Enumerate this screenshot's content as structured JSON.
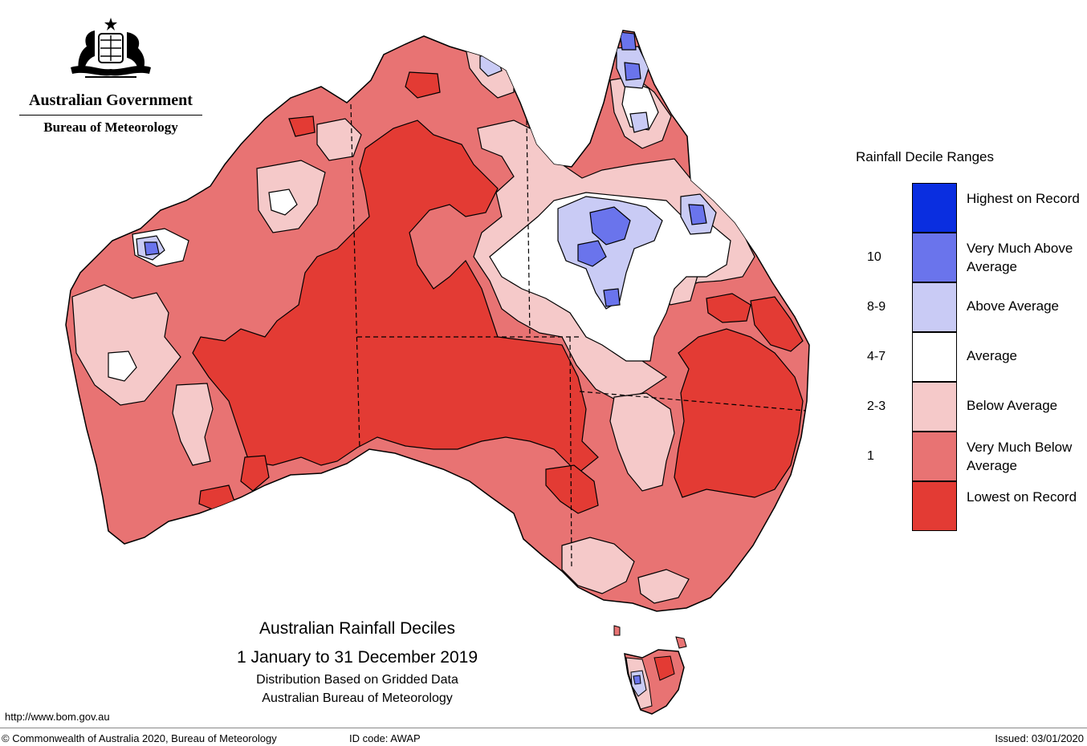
{
  "header": {
    "government": "Australian Government",
    "bureau": "Bureau of Meteorology"
  },
  "map": {
    "region": "Australia",
    "colors": {
      "highest": "#0a2ee0",
      "very_much_above": "#6a74ec",
      "above": "#c9cbf5",
      "average": "#ffffff",
      "below": "#f5c9c9",
      "very_much_below": "#e87373",
      "lowest": "#e33b34"
    }
  },
  "title": {
    "line1": "Australian Rainfall Deciles",
    "line2": "1 January to 31 December 2019",
    "line3": "Distribution Based on Gridded Data",
    "line4": "Australian Bureau of Meteorology"
  },
  "legend": {
    "title": "Rainfall Decile Ranges",
    "items": [
      {
        "range": "",
        "label": "Highest on Record",
        "color": "#0a2ee0"
      },
      {
        "range": "10",
        "label": "Very Much Above Average",
        "color": "#6a74ec"
      },
      {
        "range": "8-9",
        "label": "Above Average",
        "color": "#c9cbf5"
      },
      {
        "range": "4-7",
        "label": "Average",
        "color": "#ffffff"
      },
      {
        "range": "2-3",
        "label": "Below Average",
        "color": "#f5c9c9"
      },
      {
        "range": "1",
        "label": "Very Much Below Average",
        "color": "#e87373"
      },
      {
        "range": "",
        "label": "Lowest on Record",
        "color": "#e33b34"
      }
    ]
  },
  "footer": {
    "url": "http://www.bom.gov.au",
    "copyright": "© Commonwealth of Australia 2020, Bureau of Meteorology",
    "id_code": "ID code: AWAP",
    "issued": "Issued: 03/01/2020"
  }
}
